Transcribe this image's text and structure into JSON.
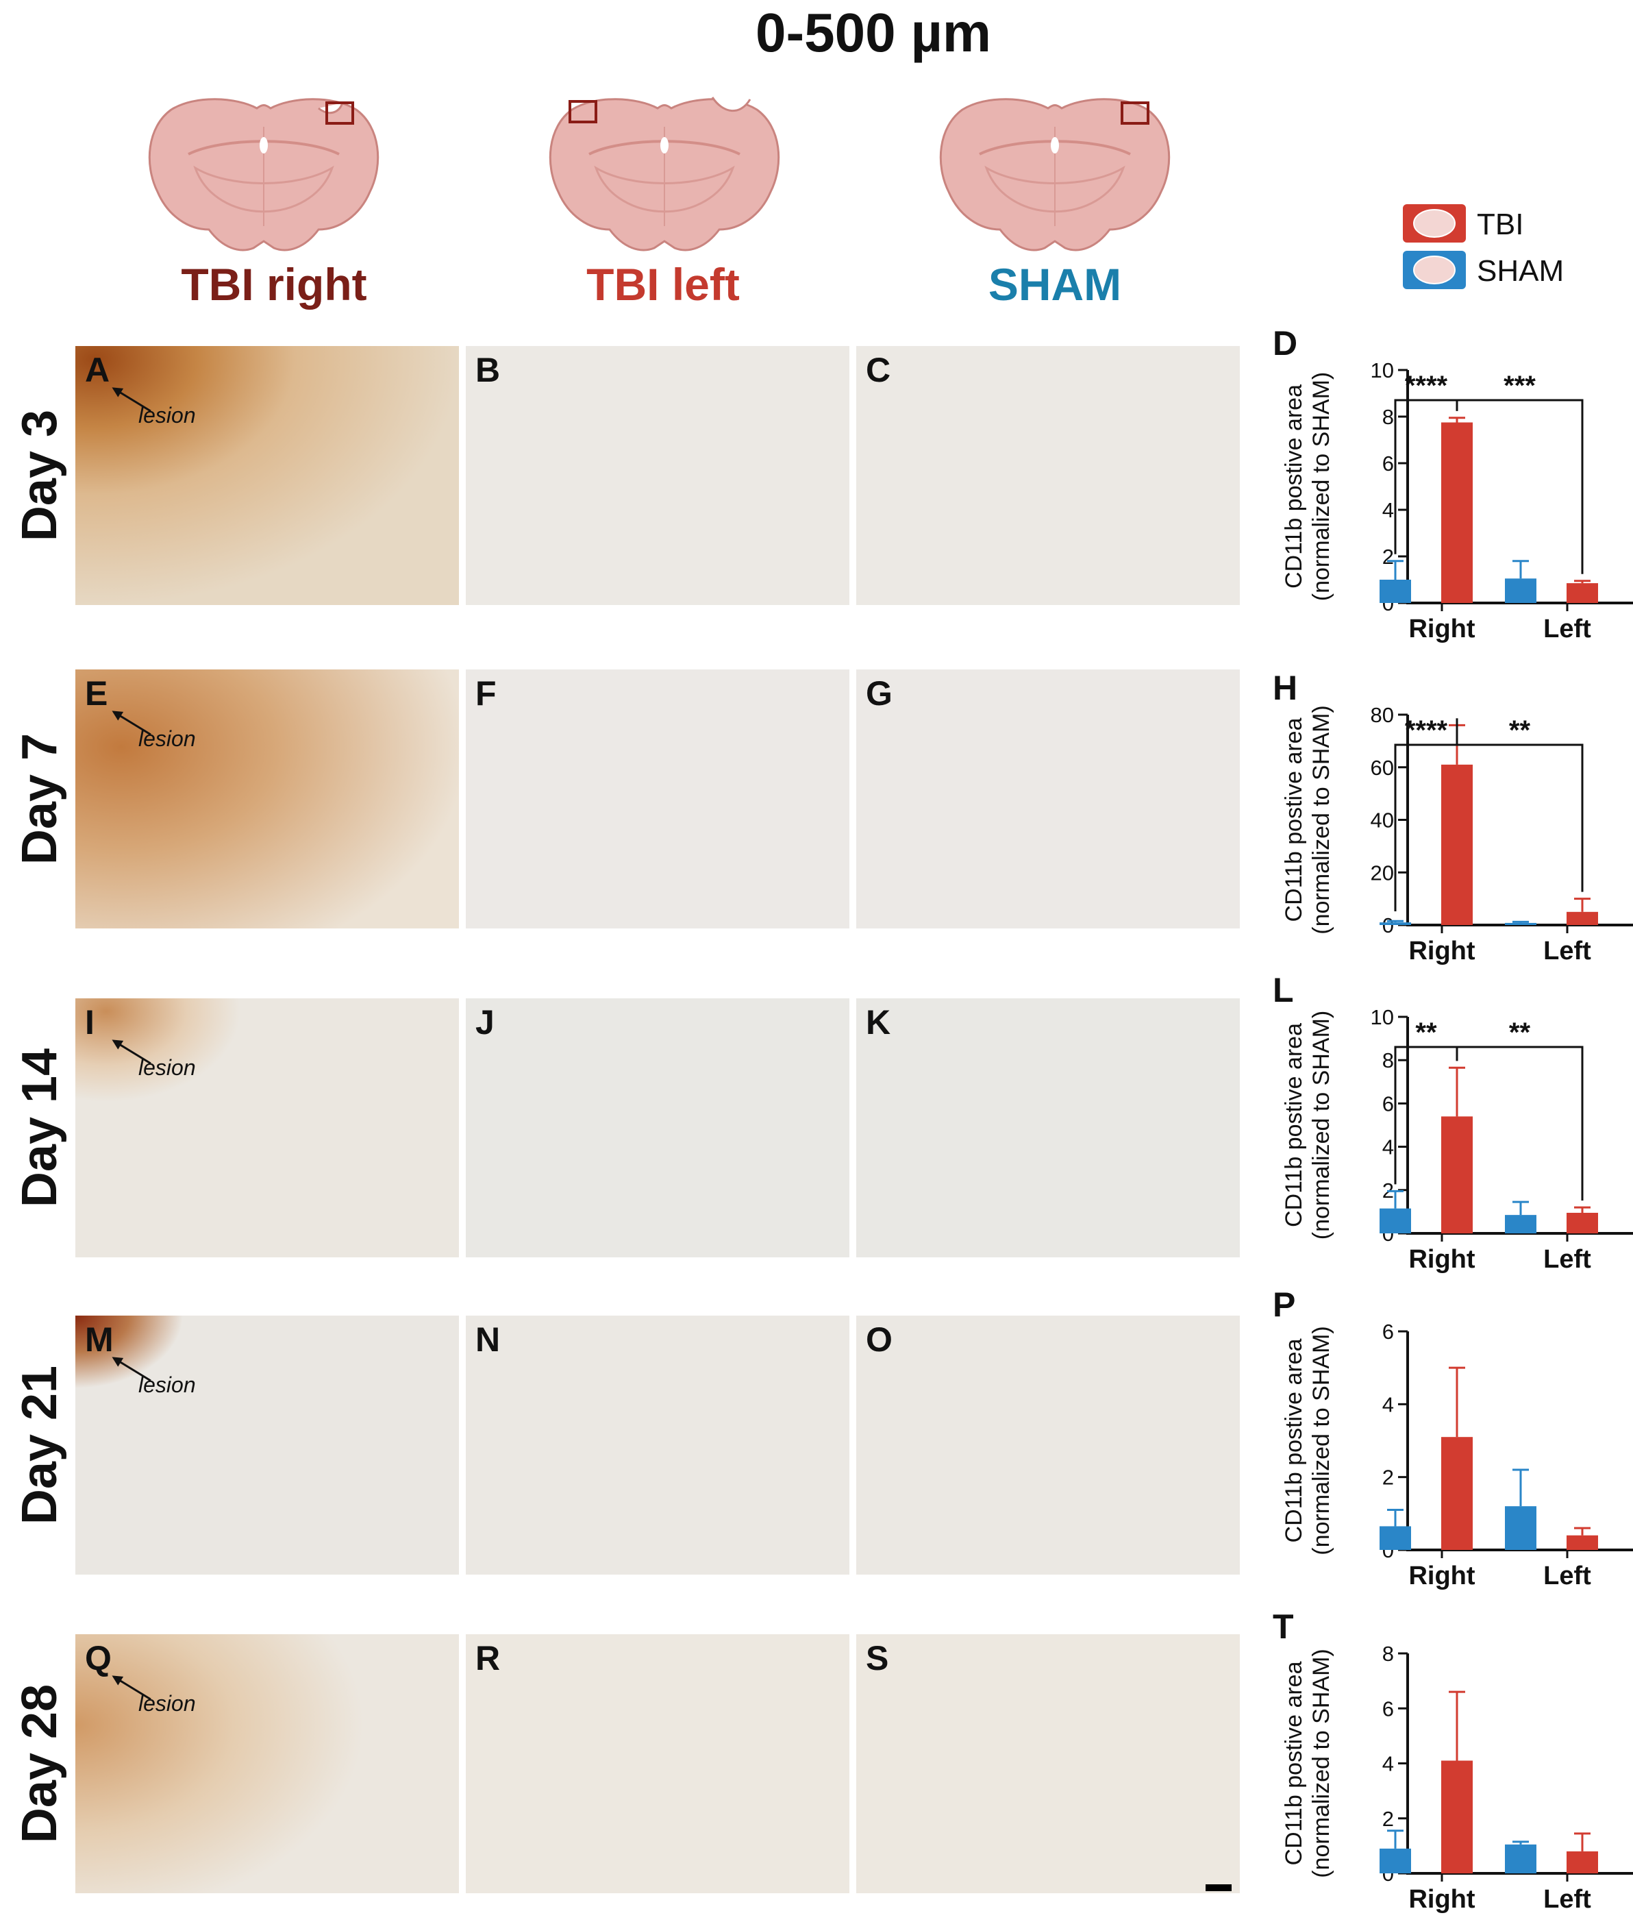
{
  "figure": {
    "title": "0-500 µm",
    "columns": [
      {
        "label": "TBI right",
        "color": "#7a1f18"
      },
      {
        "label": "TBI left",
        "color": "#c43a2e"
      },
      {
        "label": "SHAM",
        "color": "#1a7fab"
      }
    ],
    "rows": [
      {
        "label": "Day 3",
        "panels": [
          "A",
          "B",
          "C"
        ]
      },
      {
        "label": "Day 7",
        "panels": [
          "E",
          "F",
          "G"
        ]
      },
      {
        "label": "Day 14",
        "panels": [
          "I",
          "J",
          "K"
        ]
      },
      {
        "label": "Day 21",
        "panels": [
          "M",
          "N",
          "O"
        ]
      },
      {
        "label": "Day 28",
        "panels": [
          "Q",
          "R",
          "S"
        ]
      }
    ],
    "lesion_label": "lesion",
    "legend": [
      {
        "label": "TBI",
        "color": "#d23c30"
      },
      {
        "label": "SHAM",
        "color": "#2a86c8"
      }
    ]
  },
  "chart_data": [
    {
      "panel": "D",
      "type": "bar",
      "title": "",
      "ylabel": "CD11b postive area (normalized to SHAM)",
      "ylabel_lines": [
        "CD11b postive area",
        "(normalized to SHAM)"
      ],
      "categories": [
        "Right",
        "Left"
      ],
      "ylim": [
        0,
        10
      ],
      "yticks": [
        0,
        2,
        4,
        6,
        8,
        10
      ],
      "series": [
        {
          "name": "SHAM",
          "color": "#2a86c8",
          "values": [
            1.0,
            1.05
          ],
          "errors": [
            0.8,
            0.75
          ]
        },
        {
          "name": "TBI",
          "color": "#d23c30",
          "values": [
            7.75,
            0.85
          ],
          "errors": [
            0.2,
            0.1
          ]
        }
      ],
      "significance": [
        {
          "label": "****",
          "from": [
            0,
            0
          ],
          "to": [
            0,
            1
          ]
        },
        {
          "label": "***",
          "from": [
            0,
            1
          ],
          "to": [
            1,
            1
          ]
        }
      ]
    },
    {
      "panel": "H",
      "type": "bar",
      "title": "",
      "ylabel": "CD11b postive area (normalized to SHAM)",
      "ylabel_lines": [
        "CD11b postive area",
        "(normalized to SHAM)"
      ],
      "categories": [
        "Right",
        "Left"
      ],
      "ylim": [
        0,
        80
      ],
      "yticks": [
        0,
        20,
        40,
        60,
        80
      ],
      "series": [
        {
          "name": "SHAM",
          "color": "#2a86c8",
          "values": [
            1.0,
            0.8
          ],
          "errors": [
            0.5,
            0.4
          ]
        },
        {
          "name": "TBI",
          "color": "#d23c30",
          "values": [
            61,
            5
          ],
          "errors": [
            15,
            5
          ]
        }
      ],
      "significance": [
        {
          "label": "****",
          "from": [
            0,
            0
          ],
          "to": [
            0,
            1
          ]
        },
        {
          "label": "**",
          "from": [
            0,
            1
          ],
          "to": [
            1,
            1
          ]
        }
      ]
    },
    {
      "panel": "L",
      "type": "bar",
      "title": "",
      "ylabel": "CD11b postive area (normalized to SHAM)",
      "ylabel_lines": [
        "CD11b postive area",
        "(normalized to SHAM)"
      ],
      "categories": [
        "Right",
        "Left"
      ],
      "ylim": [
        0,
        10
      ],
      "yticks": [
        0,
        2,
        4,
        6,
        8,
        10
      ],
      "series": [
        {
          "name": "SHAM",
          "color": "#2a86c8",
          "values": [
            1.15,
            0.85
          ],
          "errors": [
            0.8,
            0.6
          ]
        },
        {
          "name": "TBI",
          "color": "#d23c30",
          "values": [
            5.4,
            0.95
          ],
          "errors": [
            2.25,
            0.25
          ]
        }
      ],
      "significance": [
        {
          "label": "**",
          "from": [
            0,
            0
          ],
          "to": [
            0,
            1
          ]
        },
        {
          "label": "**",
          "from": [
            0,
            1
          ],
          "to": [
            1,
            1
          ]
        }
      ]
    },
    {
      "panel": "P",
      "type": "bar",
      "title": "",
      "ylabel": "CD11b postive area (normalized to SHAM)",
      "ylabel_lines": [
        "CD11b postive area",
        "(normalized to SHAM)"
      ],
      "categories": [
        "Right",
        "Left"
      ],
      "ylim": [
        0,
        6
      ],
      "yticks": [
        0,
        2,
        4,
        6
      ],
      "series": [
        {
          "name": "SHAM",
          "color": "#2a86c8",
          "values": [
            0.65,
            1.2
          ],
          "errors": [
            0.45,
            1.0
          ]
        },
        {
          "name": "TBI",
          "color": "#d23c30",
          "values": [
            3.1,
            0.4
          ],
          "errors": [
            1.9,
            0.2
          ]
        }
      ],
      "significance": []
    },
    {
      "panel": "T",
      "type": "bar",
      "title": "",
      "ylabel": "CD11b postive area (normalized to SHAM)",
      "ylabel_lines": [
        "CD11b postive area",
        "(normalized to SHAM)"
      ],
      "categories": [
        "Right",
        "Left"
      ],
      "ylim": [
        0,
        8
      ],
      "yticks": [
        0,
        2,
        4,
        6,
        8
      ],
      "series": [
        {
          "name": "SHAM",
          "color": "#2a86c8",
          "values": [
            0.9,
            1.05
          ],
          "errors": [
            0.65,
            0.1
          ]
        },
        {
          "name": "TBI",
          "color": "#d23c30",
          "values": [
            4.1,
            0.8
          ],
          "errors": [
            2.5,
            0.65
          ]
        }
      ],
      "significance": []
    }
  ]
}
